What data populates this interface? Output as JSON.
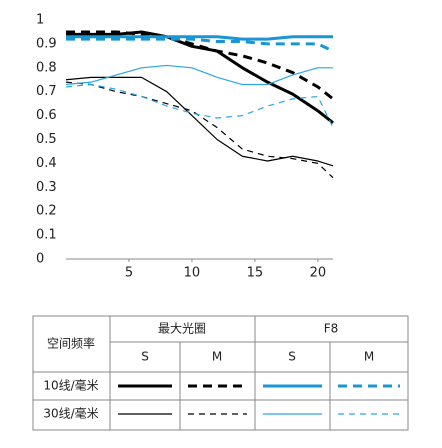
{
  "chart_data": {
    "type": "line",
    "x": [
      0,
      2,
      4,
      6,
      8,
      10,
      12,
      14,
      16,
      18,
      20,
      21.2
    ],
    "series": [
      {
        "color": "#000000",
        "width": 3,
        "dashed": false,
        "values": [
          0.94,
          0.94,
          0.94,
          0.95,
          0.93,
          0.89,
          0.87,
          0.8,
          0.74,
          0.69,
          0.62,
          0.57
        ]
      },
      {
        "color": "#000000",
        "width": 3,
        "dashed": true,
        "values": [
          0.95,
          0.95,
          0.95,
          0.94,
          0.93,
          0.9,
          0.87,
          0.85,
          0.82,
          0.78,
          0.72,
          0.67
        ]
      },
      {
        "color": "#1a96d4",
        "width": 3,
        "dashed": false,
        "values": [
          0.93,
          0.93,
          0.93,
          0.93,
          0.93,
          0.93,
          0.93,
          0.92,
          0.92,
          0.93,
          0.93,
          0.93
        ]
      },
      {
        "color": "#1a96d4",
        "width": 3,
        "dashed": true,
        "values": [
          0.92,
          0.92,
          0.92,
          0.92,
          0.92,
          0.92,
          0.91,
          0.91,
          0.9,
          0.9,
          0.9,
          0.87
        ]
      },
      {
        "color": "#000000",
        "width": 1.2,
        "dashed": false,
        "values": [
          0.75,
          0.76,
          0.76,
          0.76,
          0.7,
          0.6,
          0.5,
          0.43,
          0.41,
          0.43,
          0.41,
          0.39
        ]
      },
      {
        "color": "#000000",
        "width": 1.2,
        "dashed": true,
        "values": [
          0.74,
          0.73,
          0.7,
          0.68,
          0.65,
          0.62,
          0.55,
          0.46,
          0.43,
          0.42,
          0.4,
          0.34
        ]
      },
      {
        "color": "#2aa6e0",
        "width": 1.2,
        "dashed": false,
        "values": [
          0.73,
          0.74,
          0.77,
          0.8,
          0.81,
          0.8,
          0.76,
          0.73,
          0.73,
          0.77,
          0.8,
          0.8
        ]
      },
      {
        "color": "#2aa6e0",
        "width": 1.2,
        "dashed": true,
        "values": [
          0.72,
          0.73,
          0.71,
          0.68,
          0.64,
          0.61,
          0.59,
          0.6,
          0.64,
          0.67,
          0.68,
          0.55
        ]
      }
    ],
    "xlim": [
      0,
      21.2
    ],
    "ylim": [
      0,
      1
    ],
    "xticks": [
      5,
      10,
      15,
      20
    ],
    "yticks": [
      0,
      0.1,
      0.2,
      0.3,
      0.4,
      0.5,
      0.6,
      0.7,
      0.8,
      0.9,
      1
    ],
    "grid": false
  },
  "legend_table": {
    "corner_header": "空间频率",
    "groups": [
      "最大光圈",
      "F8"
    ],
    "columns": [
      "S",
      "M",
      "S",
      "M"
    ],
    "rows": [
      "10线/毫米",
      "30线/毫米"
    ]
  }
}
